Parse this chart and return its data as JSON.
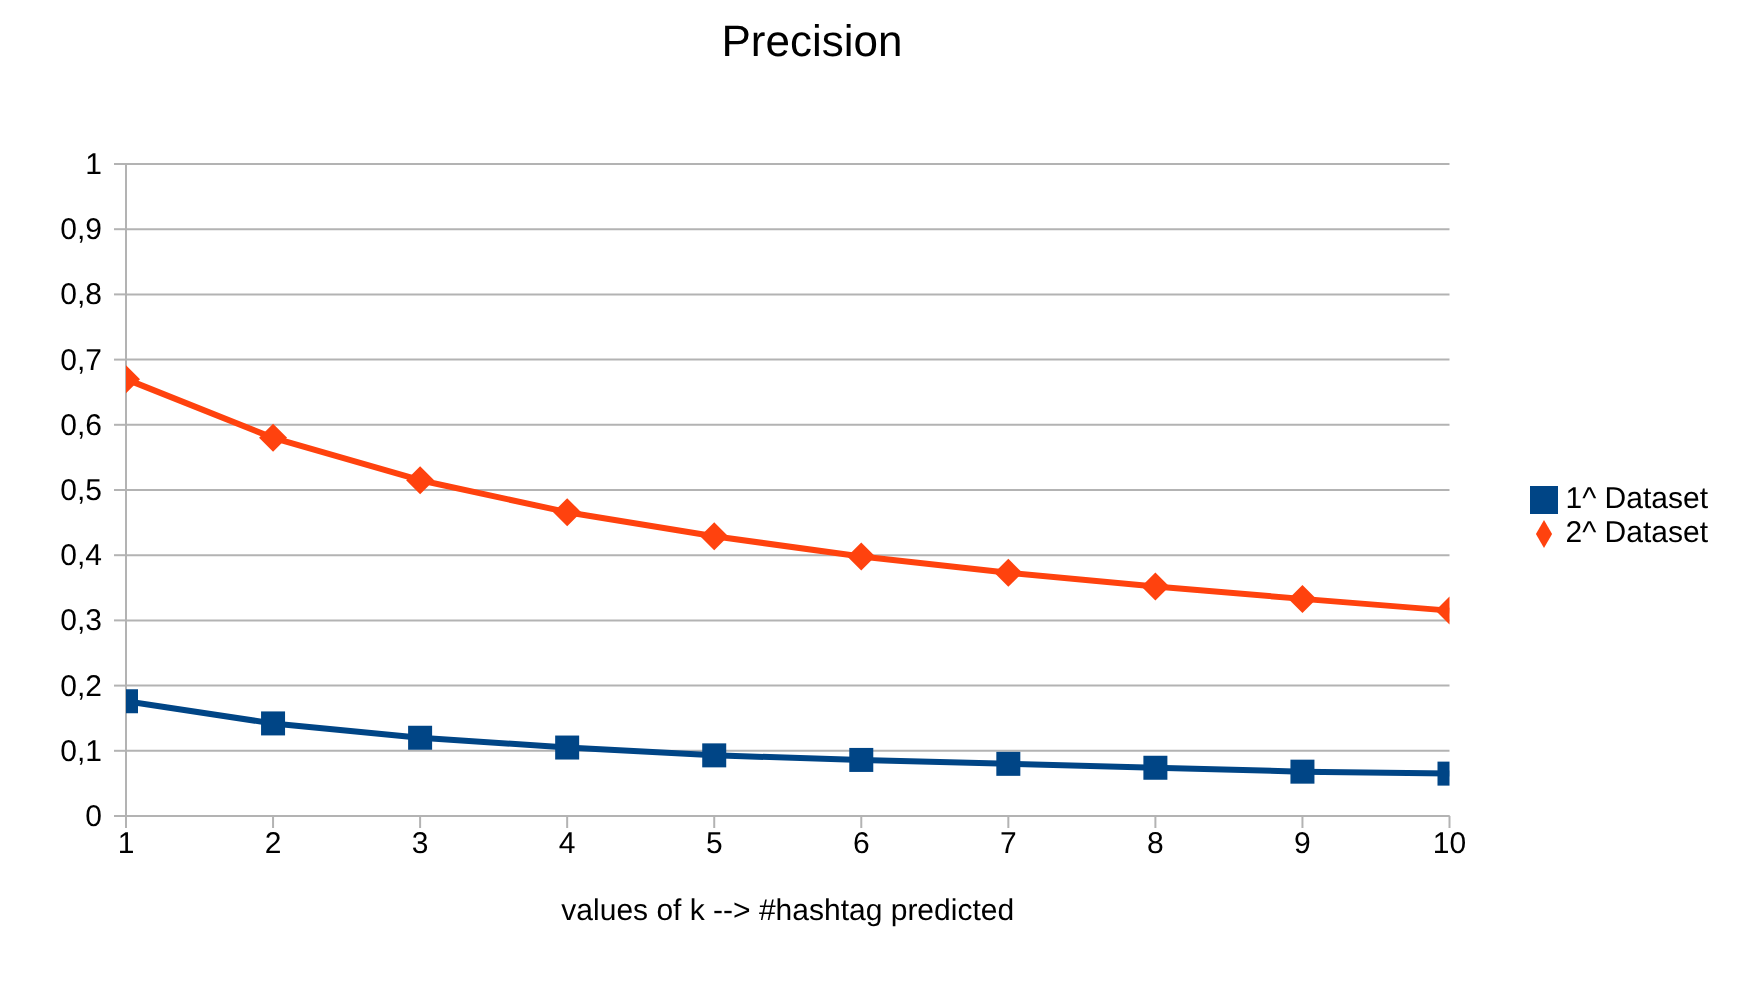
{
  "chart_data": {
    "type": "line",
    "title": "Precision",
    "xlabel": "values of k --> #hashtag predicted",
    "x": [
      1,
      2,
      3,
      4,
      5,
      6,
      7,
      8,
      9,
      10
    ],
    "series": [
      {
        "name": "1^ Dataset",
        "color": "#004586",
        "marker": "square",
        "values": [
          0.176,
          0.142,
          0.12,
          0.105,
          0.093,
          0.086,
          0.08,
          0.074,
          0.068,
          0.065
        ]
      },
      {
        "name": "2^ Dataset",
        "color": "#ff420e",
        "marker": "diamond",
        "values": [
          0.67,
          0.58,
          0.515,
          0.466,
          0.429,
          0.398,
          0.373,
          0.352,
          0.333,
          0.315
        ]
      }
    ],
    "xlim": [
      1,
      10
    ],
    "xticks": [
      1,
      2,
      3,
      4,
      5,
      6,
      7,
      8,
      9,
      10
    ],
    "ylim": [
      0,
      1
    ],
    "yticks": [
      0,
      {
        "value": 0.1,
        "label": "0,1"
      },
      {
        "value": 0.2,
        "label": "0,2"
      },
      {
        "value": 0.3,
        "label": "0,3"
      },
      {
        "value": 0.4,
        "label": "0,4"
      },
      {
        "value": 0.5,
        "label": "0,5"
      },
      {
        "value": 0.6,
        "label": "0,6"
      },
      {
        "value": 0.7,
        "label": "0,7"
      },
      {
        "value": 0.8,
        "label": "0,8"
      },
      {
        "value": 0.9,
        "label": "0,9"
      },
      1
    ],
    "grid": "y",
    "legend": "right",
    "line_style": "solid"
  }
}
